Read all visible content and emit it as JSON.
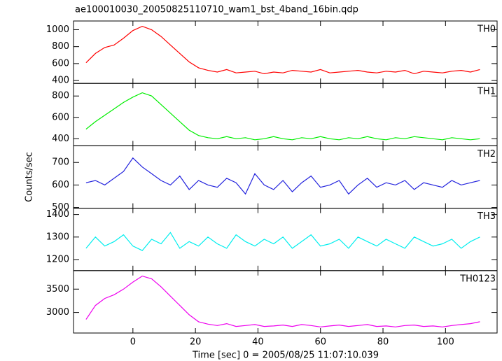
{
  "title": "ae100010030_20050825110710_wam1_bst_4band_16bin.qdp",
  "ylabel": "Counts/sec",
  "xlabel": "Time [sec] 0 = 2005/08/25 11:07:10.039",
  "chart_data": [
    {
      "type": "line",
      "label": "TH0",
      "color": "#ff0000",
      "x": [
        -15,
        -12,
        -9,
        -6,
        -3,
        0,
        3,
        6,
        9,
        12,
        15,
        18,
        21,
        24,
        27,
        30,
        33,
        36,
        39,
        42,
        45,
        48,
        51,
        54,
        57,
        60,
        63,
        66,
        69,
        72,
        75,
        78,
        81,
        84,
        87,
        90,
        93,
        96,
        99,
        102,
        105,
        108,
        111
      ],
      "values": [
        610,
        720,
        790,
        820,
        900,
        990,
        1040,
        1000,
        920,
        820,
        720,
        620,
        550,
        520,
        500,
        530,
        490,
        500,
        510,
        480,
        500,
        490,
        520,
        510,
        500,
        530,
        490,
        500,
        510,
        520,
        500,
        490,
        510,
        500,
        520,
        480,
        510,
        500,
        490,
        510,
        520,
        500,
        530
      ],
      "ylim": [
        366,
        1103
      ],
      "yticks": [
        400,
        600,
        800,
        1000
      ]
    },
    {
      "type": "line",
      "label": "TH1",
      "color": "#00ee00",
      "x": [
        -15,
        -12,
        -9,
        -6,
        -3,
        0,
        3,
        6,
        9,
        12,
        15,
        18,
        21,
        24,
        27,
        30,
        33,
        36,
        39,
        42,
        45,
        48,
        51,
        54,
        57,
        60,
        63,
        66,
        69,
        72,
        75,
        78,
        81,
        84,
        87,
        90,
        93,
        96,
        99,
        102,
        105,
        108,
        111
      ],
      "values": [
        490,
        560,
        620,
        680,
        740,
        790,
        830,
        800,
        720,
        640,
        560,
        480,
        430,
        410,
        400,
        420,
        400,
        410,
        390,
        400,
        420,
        400,
        390,
        410,
        400,
        420,
        400,
        390,
        410,
        400,
        420,
        400,
        390,
        410,
        400,
        420,
        410,
        400,
        390,
        410,
        400,
        390,
        400
      ],
      "ylim": [
        334,
        918
      ],
      "yticks": [
        400,
        600,
        800
      ]
    },
    {
      "type": "line",
      "label": "TH2",
      "color": "#2222dd",
      "x": [
        -15,
        -12,
        -9,
        -6,
        -3,
        0,
        3,
        6,
        9,
        12,
        15,
        18,
        21,
        24,
        27,
        30,
        33,
        36,
        39,
        42,
        45,
        48,
        51,
        54,
        57,
        60,
        63,
        66,
        69,
        72,
        75,
        78,
        81,
        84,
        87,
        90,
        93,
        96,
        99,
        102,
        105,
        108,
        111
      ],
      "values": [
        610,
        620,
        600,
        630,
        660,
        720,
        680,
        650,
        620,
        600,
        640,
        580,
        620,
        600,
        590,
        630,
        610,
        560,
        650,
        600,
        580,
        620,
        570,
        610,
        640,
        590,
        600,
        620,
        560,
        600,
        630,
        590,
        610,
        600,
        620,
        580,
        610,
        600,
        590,
        620,
        600,
        610,
        620
      ],
      "ylim": [
        497,
        774
      ],
      "yticks": [
        500,
        600,
        700
      ]
    },
    {
      "type": "line",
      "label": "TH3",
      "color": "#00eeee",
      "x": [
        -15,
        -12,
        -9,
        -6,
        -3,
        0,
        3,
        6,
        9,
        12,
        15,
        18,
        21,
        24,
        27,
        30,
        33,
        36,
        39,
        42,
        45,
        48,
        51,
        54,
        57,
        60,
        63,
        66,
        69,
        72,
        75,
        78,
        81,
        84,
        87,
        90,
        93,
        96,
        99,
        102,
        105,
        108,
        111
      ],
      "values": [
        1250,
        1300,
        1260,
        1280,
        1310,
        1260,
        1240,
        1290,
        1270,
        1320,
        1250,
        1280,
        1260,
        1300,
        1270,
        1250,
        1310,
        1280,
        1260,
        1290,
        1270,
        1300,
        1250,
        1280,
        1310,
        1260,
        1270,
        1290,
        1250,
        1300,
        1280,
        1260,
        1290,
        1270,
        1250,
        1300,
        1280,
        1260,
        1270,
        1290,
        1250,
        1280,
        1300
      ],
      "ylim": [
        1151,
        1428
      ],
      "yticks": [
        1200,
        1300,
        1400
      ]
    },
    {
      "type": "line",
      "label": "TH0123",
      "color": "#ee00ee",
      "x": [
        -15,
        -12,
        -9,
        -6,
        -3,
        0,
        3,
        6,
        9,
        12,
        15,
        18,
        21,
        24,
        27,
        30,
        33,
        36,
        39,
        42,
        45,
        48,
        51,
        54,
        57,
        60,
        63,
        66,
        69,
        72,
        75,
        78,
        81,
        84,
        87,
        90,
        93,
        96,
        99,
        102,
        105,
        108,
        111
      ],
      "values": [
        2850,
        3150,
        3300,
        3380,
        3500,
        3650,
        3780,
        3720,
        3550,
        3350,
        3150,
        2950,
        2800,
        2750,
        2720,
        2760,
        2700,
        2720,
        2740,
        2700,
        2710,
        2730,
        2700,
        2740,
        2720,
        2690,
        2710,
        2730,
        2700,
        2720,
        2740,
        2700,
        2710,
        2690,
        2720,
        2730,
        2700,
        2710,
        2690,
        2720,
        2740,
        2760,
        2800
      ],
      "ylim": [
        2559,
        3897
      ],
      "yticks": [
        3000,
        3500
      ],
      "xlim": [
        -19,
        116.5
      ],
      "xticks": [
        0,
        20,
        40,
        60,
        80,
        100
      ]
    }
  ]
}
